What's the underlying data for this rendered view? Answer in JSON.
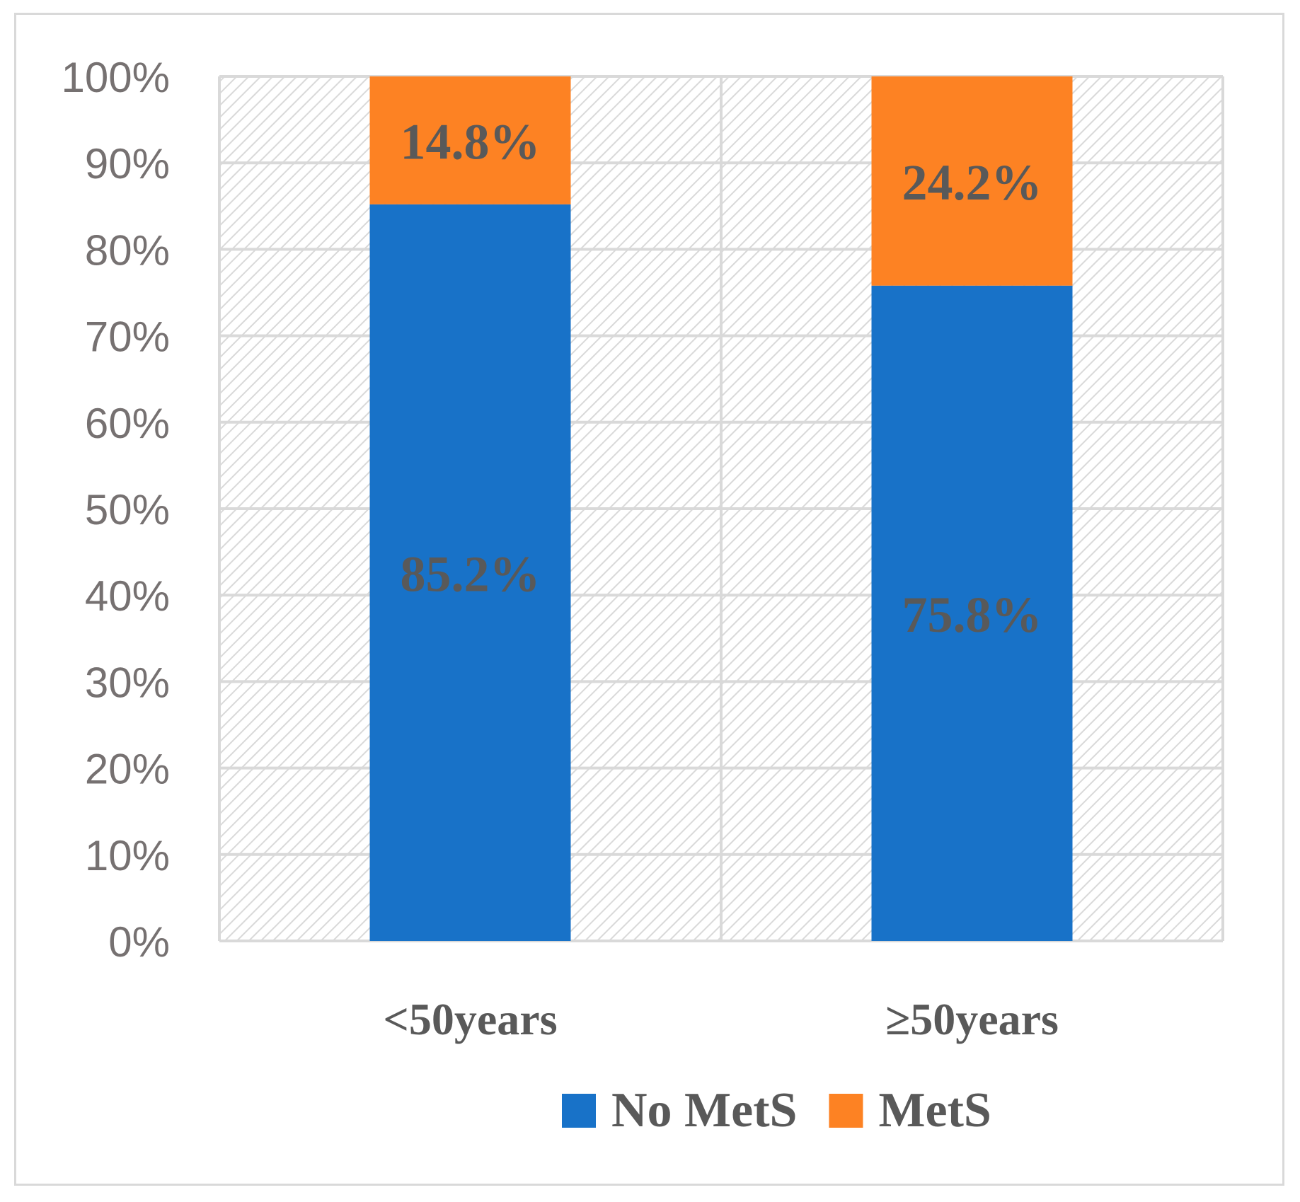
{
  "chart_data": {
    "type": "bar",
    "stacked": true,
    "percent_stacked": true,
    "categories": [
      "<50years",
      "≥50years"
    ],
    "series": [
      {
        "name": "No MetS",
        "values": [
          85.2,
          75.8
        ],
        "labels": [
          "85.2%",
          "75.8%"
        ],
        "color": "#1872C8"
      },
      {
        "name": "MetS",
        "values": [
          14.8,
          24.2
        ],
        "labels": [
          "14.8%",
          "24.2%"
        ],
        "color": "#FD8223"
      }
    ],
    "y_ticks": [
      "0%",
      "10%",
      "20%",
      "30%",
      "40%",
      "50%",
      "60%",
      "70%",
      "80%",
      "90%",
      "100%"
    ],
    "ylim": [
      0,
      100
    ],
    "grid": true,
    "legend_position": "bottom-right",
    "colors": {
      "grid": "#d9d9d9",
      "hatch": "#d9d9d9",
      "text": "#595959",
      "tick_text": "#767171"
    }
  }
}
